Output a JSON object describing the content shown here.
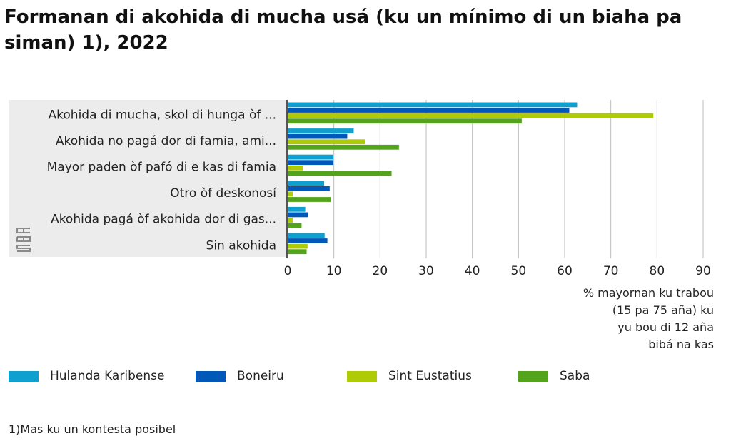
{
  "chart_data": {
    "type": "bar",
    "orientation": "horizontal",
    "title": "Formanan di akohida di mucha usá (ku un mínimo di un biaha pa siman) 1), 2022",
    "categories": [
      "Akohida di mucha, skol di hunga òf ...",
      "Akohida no pagá dor di famia, ami...",
      "Mayor paden òf pafó di e kas di famia",
      "Otro òf deskonosí",
      "Akohida pagá òf akohida dor di gas...",
      "Sin akohida"
    ],
    "series": [
      {
        "name": "Hulanda Karibense",
        "color": "#0fa0d0",
        "values": [
          62.7,
          14.3,
          9.9,
          7.9,
          3.8,
          8.0
        ]
      },
      {
        "name": "Boneiru",
        "color": "#0058b8",
        "values": [
          61.0,
          12.9,
          9.9,
          9.1,
          4.4,
          8.6
        ]
      },
      {
        "name": "Sint Eustatius",
        "color": "#afcb05",
        "values": [
          79.2,
          16.8,
          3.3,
          1.1,
          1.1,
          4.3
        ]
      },
      {
        "name": "Saba",
        "color": "#53a31d",
        "values": [
          50.7,
          24.1,
          22.5,
          9.3,
          3.0,
          4.1
        ]
      }
    ],
    "xlim": [
      0,
      90
    ],
    "xticks": [
      0,
      10,
      20,
      30,
      40,
      50,
      60,
      70,
      80,
      90
    ],
    "xlabel": [
      "% mayornan ku trabou",
      "(15 pa 75 aña) ku",
      "yu bou di 12 aña",
      "bibá na kas"
    ],
    "grid": true,
    "legend_position": "bottom"
  },
  "footnote": "1)Mas ku un kontesta posibel",
  "logo": "cbs"
}
